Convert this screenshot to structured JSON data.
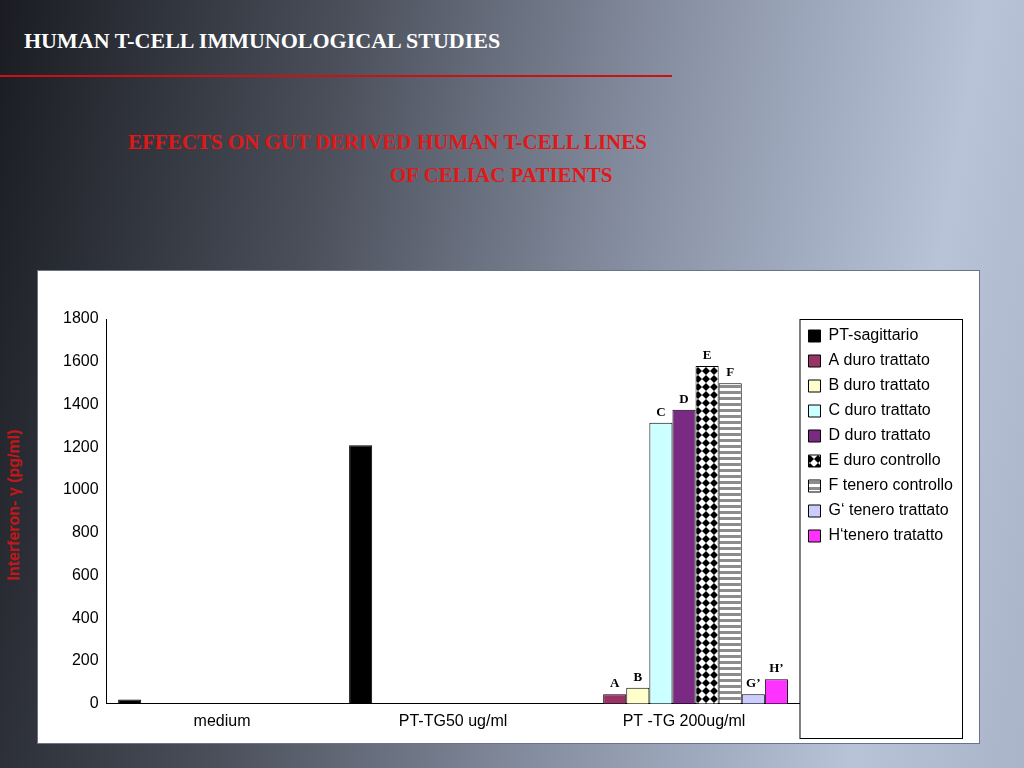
{
  "chart_data": {
    "type": "bar",
    "title": "HUMAN T-CELL IMMUNOLOGICAL STUDIES",
    "subtitle": [
      "EFFECTS ON GUT  DERIVED HUMAN T-CELL LINES",
      "OF CELIAC PATIENTS"
    ],
    "y_label": "Interferon- γ (pg/ml)",
    "categories": [
      "medium",
      "PT-TG50 ug/ml",
      "PT -TG 200ug/ml"
    ],
    "series": [
      {
        "name": "PT-sagittario",
        "color": "#000000",
        "values": [
          20,
          1210,
          null
        ]
      },
      {
        "name": "A duro trattato",
        "color": "#993366",
        "annotation": "A",
        "values": [
          null,
          null,
          45
        ]
      },
      {
        "name": "B duro trattato",
        "color": "#ffffcc",
        "annotation": "B",
        "values": [
          null,
          null,
          75
        ]
      },
      {
        "name": "C duro trattato",
        "color": "#ccffff",
        "annotation": "C",
        "values": [
          null,
          null,
          1315
        ]
      },
      {
        "name": "D duro trattato",
        "color": "#7a2a82",
        "annotation": "D",
        "values": [
          null,
          null,
          1375
        ]
      },
      {
        "name": "E duro controllo",
        "color": "#000000",
        "annotation": "E",
        "values": [
          null,
          null,
          1580
        ]
      },
      {
        "name": "F tenero controllo",
        "color": "#8c8c8c",
        "annotation": "F",
        "values": [
          null,
          null,
          1500
        ]
      },
      {
        "name": "G‘ tenero trattato",
        "color": "#ccccff",
        "annotation": "G’",
        "values": [
          null,
          null,
          45
        ]
      },
      {
        "name": "H‘tenero tratatto",
        "color": "#ff33ff",
        "annotation": "H’",
        "values": [
          null,
          null,
          115
        ]
      }
    ],
    "ylim": [
      0,
      1800
    ],
    "yticks": [
      0,
      200,
      400,
      600,
      800,
      1000,
      1200,
      1400,
      1600,
      1800
    ],
    "grid": false,
    "legend": "right"
  }
}
